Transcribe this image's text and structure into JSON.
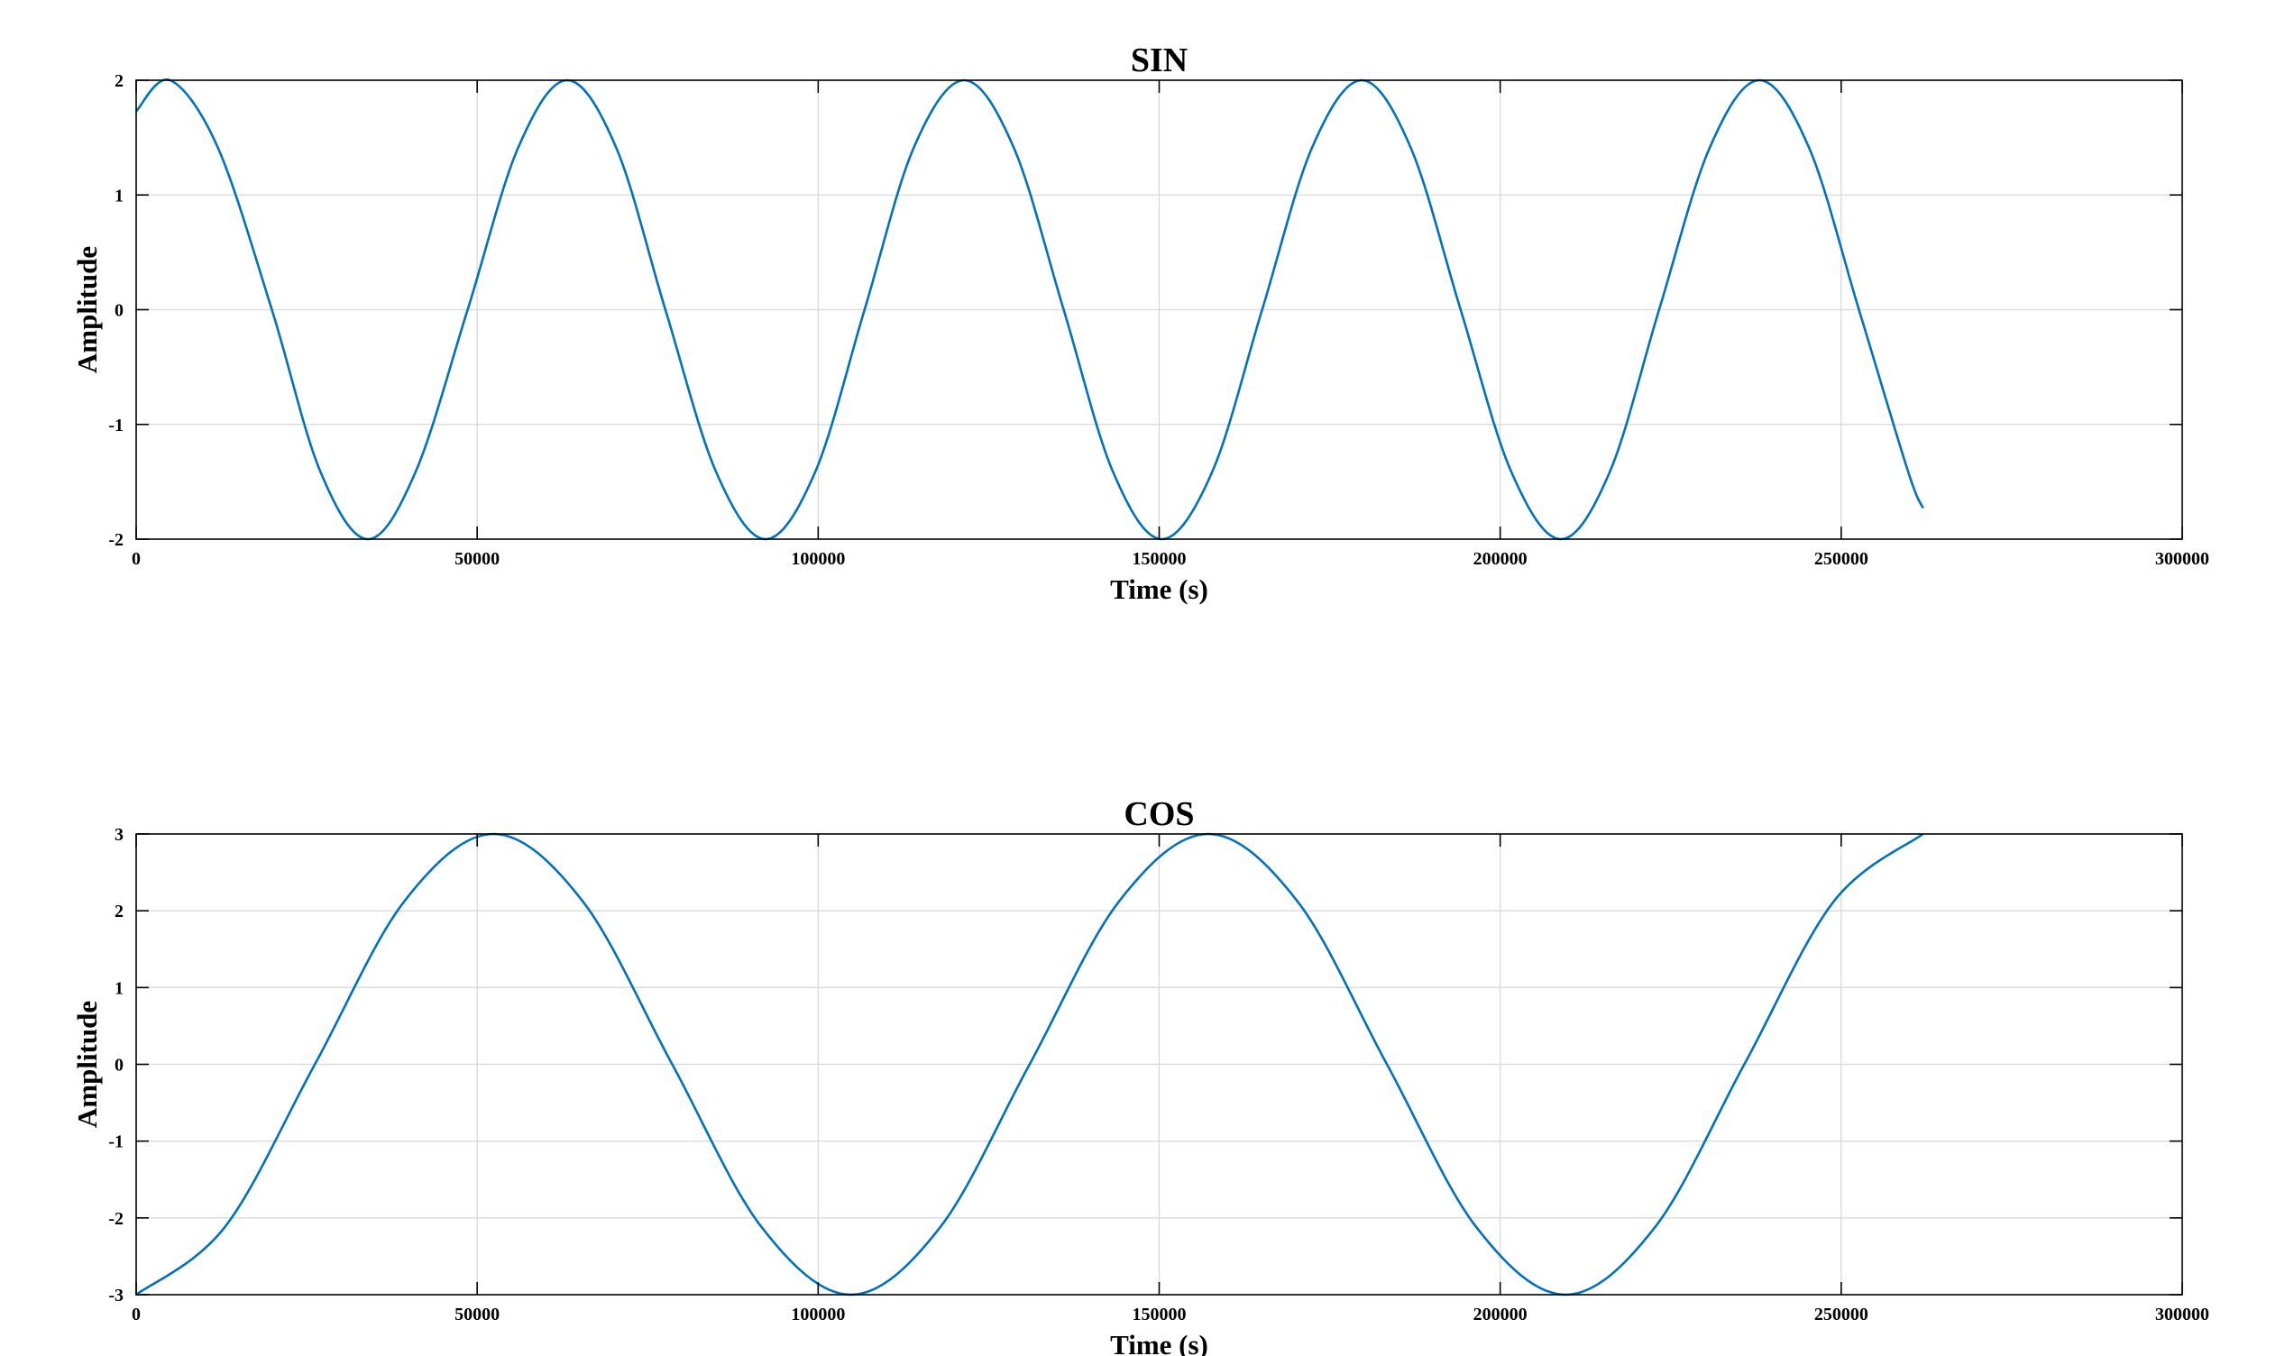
{
  "chart_data": [
    {
      "type": "line",
      "title": "SIN",
      "xlabel": "Time (s)",
      "ylabel": "Amplitude",
      "xlim": [
        0,
        300000
      ],
      "ylim": [
        -2,
        2
      ],
      "xticks": [
        0,
        50000,
        100000,
        150000,
        200000,
        250000,
        300000
      ],
      "xtick_labels": [
        "0",
        "50000",
        "100000",
        "150000",
        "200000",
        "250000",
        "300000"
      ],
      "yticks": [
        -2,
        -1,
        0,
        1,
        2
      ],
      "ytick_labels": [
        "-2",
        "-1",
        "0",
        "1",
        "2"
      ],
      "grid": true,
      "legend": "none",
      "series": [
        {
          "color": "#0072bd",
          "x": [
            0,
            5000,
            12000,
            19900,
            27000,
            34000,
            41000,
            48600,
            56000,
            63200,
            70400,
            77600,
            85000,
            92300,
            99600,
            106800,
            114000,
            121400,
            128700,
            136000,
            143200,
            150400,
            157800,
            165100,
            172400,
            179700,
            186900,
            194200,
            201600,
            208900,
            216100,
            223300,
            230700,
            238000,
            245300,
            252600,
            259800,
            262000
          ],
          "y": [
            1.73,
            2,
            1.41,
            0,
            -1.41,
            -2,
            -1.41,
            0,
            1.41,
            2,
            1.41,
            0,
            -1.41,
            -2,
            -1.41,
            0,
            1.41,
            2,
            1.41,
            0,
            -1.41,
            -2,
            -1.41,
            0,
            1.41,
            2,
            1.41,
            0,
            -1.41,
            -2,
            -1.41,
            0,
            1.41,
            2,
            1.41,
            0,
            -1.41,
            -1.73
          ]
        }
      ]
    },
    {
      "type": "line",
      "title": "COS",
      "xlabel": "Time (s)",
      "ylabel": "Amplitude",
      "xlim": [
        0,
        300000
      ],
      "ylim": [
        -3,
        3
      ],
      "xticks": [
        0,
        50000,
        100000,
        150000,
        200000,
        250000,
        300000
      ],
      "xtick_labels": [
        "0",
        "50000",
        "100000",
        "150000",
        "200000",
        "250000",
        "300000"
      ],
      "yticks": [
        -3,
        -2,
        -1,
        0,
        1,
        2,
        3
      ],
      "ytick_labels": [
        "-3",
        "-2",
        "-1",
        "0",
        "1",
        "2",
        "3"
      ],
      "grid": true,
      "legend": "none",
      "series": [
        {
          "color": "#0072bd",
          "x": [
            0,
            13000,
            26200,
            39300,
            52400,
            65500,
            78600,
            91700,
            104800,
            117900,
            131000,
            144100,
            157200,
            170300,
            183400,
            196500,
            209600,
            222700,
            235800,
            248900,
            262000
          ],
          "y": [
            -3,
            -2.12,
            0,
            2.12,
            3,
            2.12,
            0,
            -2.12,
            -3,
            -2.12,
            0,
            2.12,
            3,
            2.12,
            0,
            -2.12,
            -3,
            -2.12,
            0,
            2.12,
            3
          ]
        }
      ]
    }
  ]
}
